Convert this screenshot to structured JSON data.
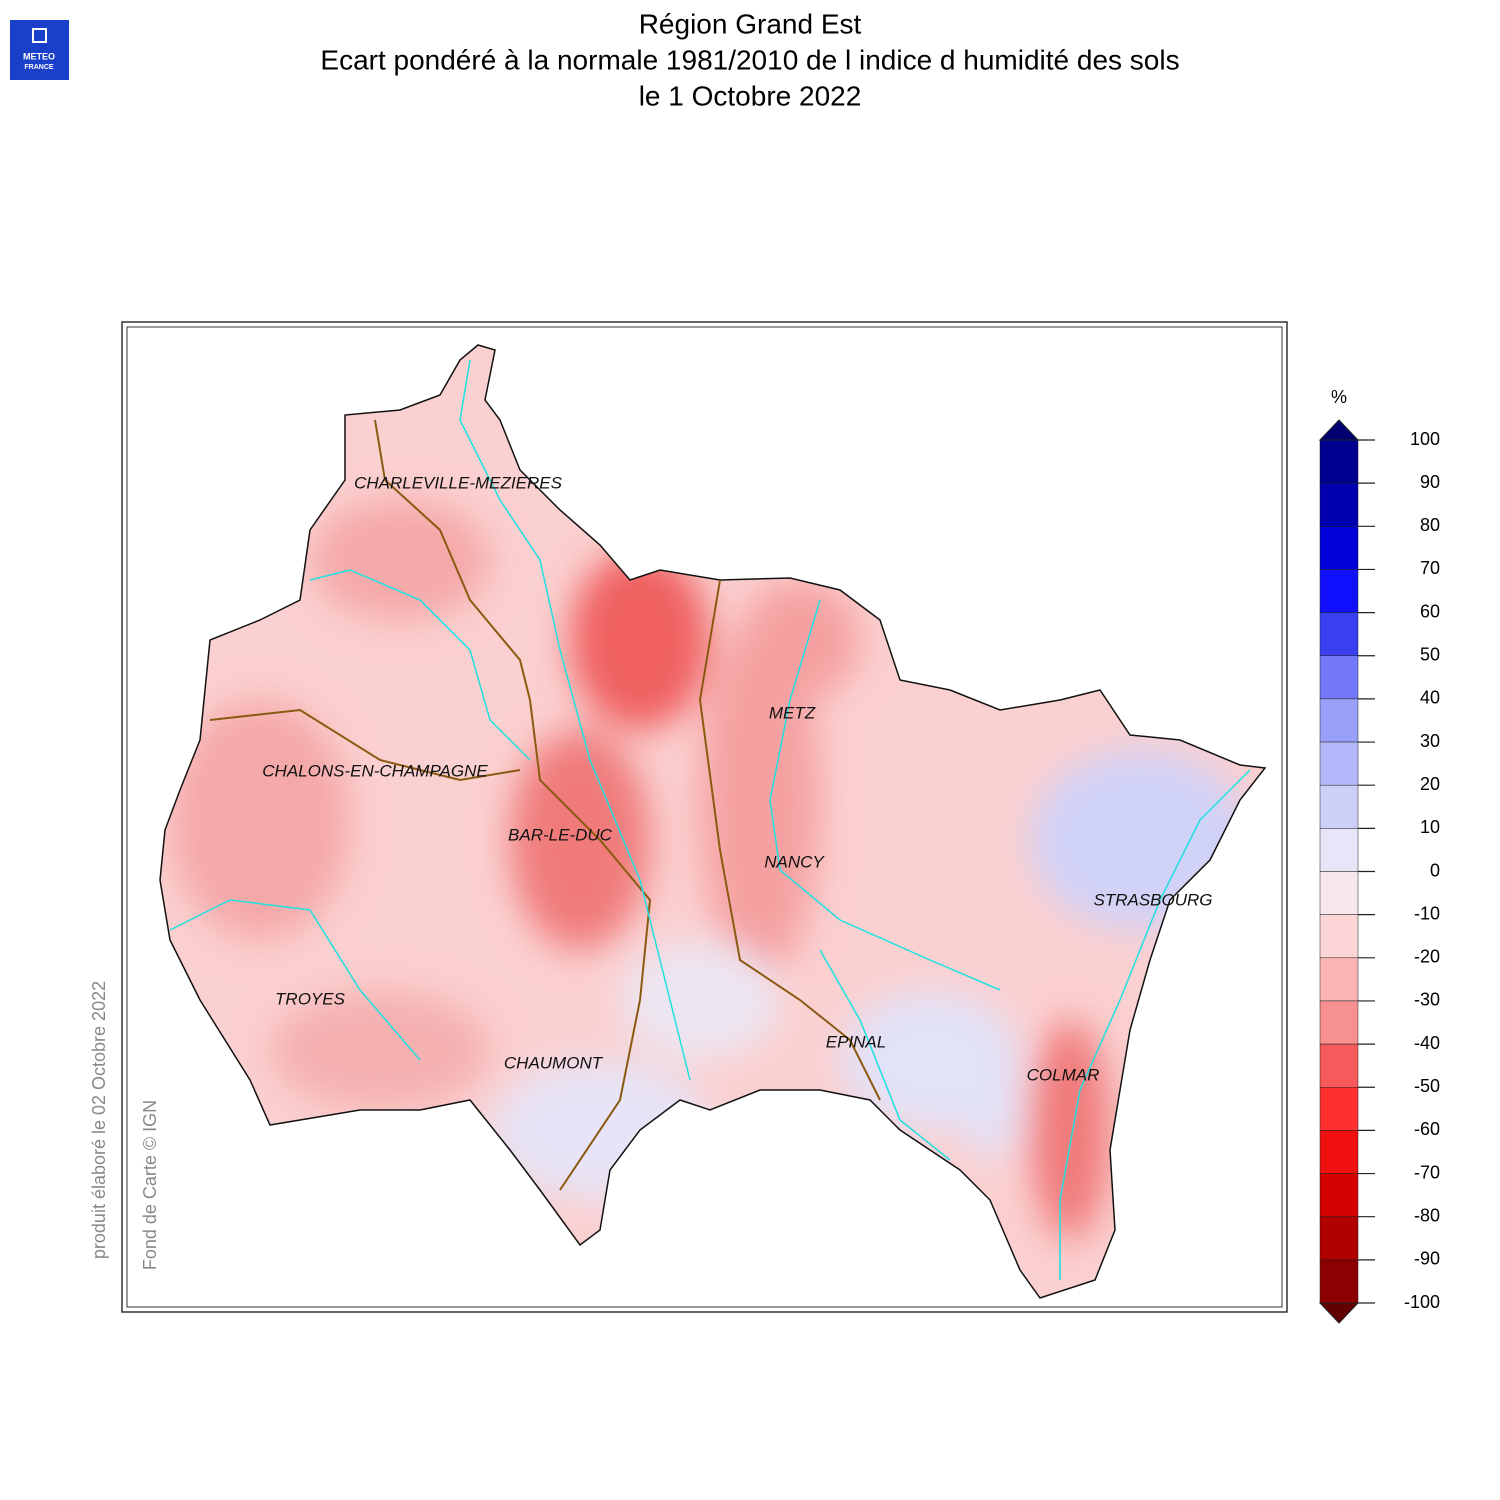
{
  "logo": [
    "METEO",
    "FRANCE"
  ],
  "title": [
    "Région Grand Est",
    "Ecart pondéré à la normale 1981/2010 de l indice d humidité des sols",
    "le 1 Octobre 2022"
  ],
  "cities": [
    "CHARLEVILLE-MEZIERES",
    "METZ",
    "CHALONS-EN-CHAMPAGNE",
    "BAR-LE-DUC",
    "NANCY",
    "STRASBOURG",
    "TROYES",
    "EPINAL",
    "CHAUMONT",
    "COLMAR"
  ],
  "credits": [
    "produit élaboré le 02 Octobre 2022",
    "Fond de Carte © IGN"
  ],
  "colorbar": {
    "unit": "%",
    "ticks": [
      100,
      90,
      80,
      70,
      60,
      50,
      40,
      30,
      20,
      10,
      0,
      -10,
      -20,
      -30,
      -40,
      -50,
      -60,
      -70,
      -80,
      -90,
      -100
    ],
    "colors": [
      "#000090",
      "#0000b0",
      "#0000d8",
      "#1010ff",
      "#3a40f0",
      "#7278f8",
      "#9aa0fa",
      "#b4b8fa",
      "#cccff8",
      "#e6e6f8",
      "#f7e8ee",
      "#fcd6d6",
      "#fab4b4",
      "#f79090",
      "#f75a5a",
      "#ff3030",
      "#f01010",
      "#d40000",
      "#b00000",
      "#8b0000"
    ],
    "over_color": "#000070",
    "under_color": "#600000"
  }
}
